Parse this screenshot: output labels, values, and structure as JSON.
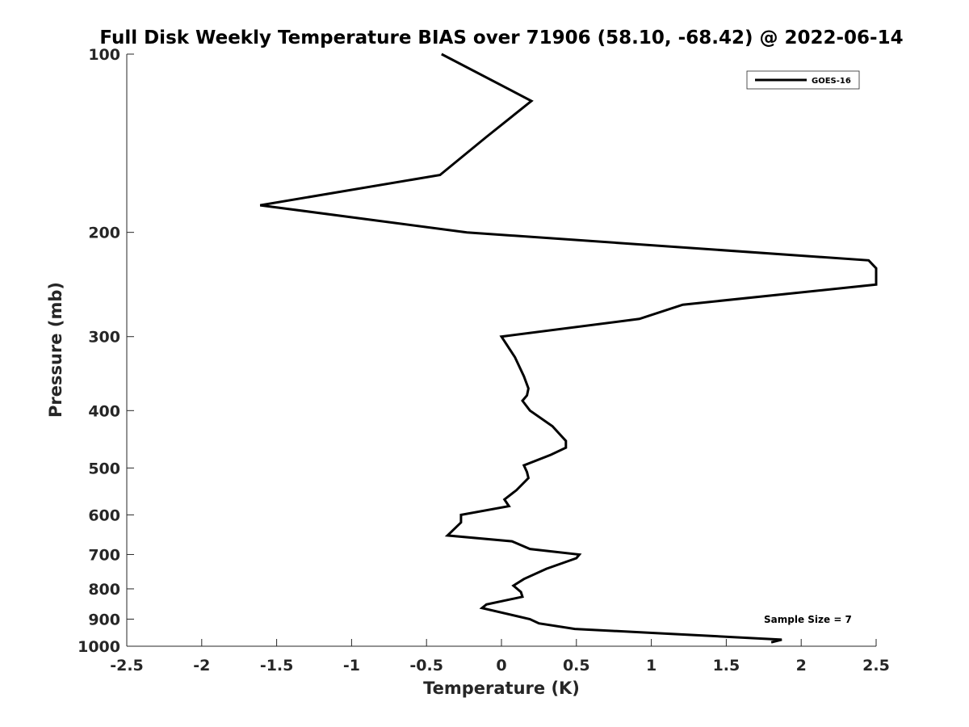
{
  "chart_data": {
    "type": "line",
    "title": "Full Disk Weekly Temperature BIAS over 71906 (58.10, -68.42) @ 2022-06-14",
    "xlabel": "Temperature (K)",
    "ylabel": "Pressure (mb)",
    "xlim": [
      -2.5,
      2.5
    ],
    "ylim": [
      100,
      1000
    ],
    "y_scale": "log",
    "y_reversed": true,
    "grid": false,
    "legend_position": "top-right",
    "x_ticks": [
      {
        "value": -2.5,
        "label": "-2.5"
      },
      {
        "value": -2,
        "label": "-2"
      },
      {
        "value": -1.5,
        "label": "-1.5"
      },
      {
        "value": -1,
        "label": "-1"
      },
      {
        "value": -0.5,
        "label": "-0.5"
      },
      {
        "value": 0,
        "label": "0"
      },
      {
        "value": 0.5,
        "label": "0.5"
      },
      {
        "value": 1,
        "label": "1"
      },
      {
        "value": 1.5,
        "label": "1.5"
      },
      {
        "value": 2,
        "label": "2"
      },
      {
        "value": 2.5,
        "label": "2.5"
      }
    ],
    "y_ticks": [
      {
        "value": 100,
        "label": "100"
      },
      {
        "value": 200,
        "label": "200"
      },
      {
        "value": 300,
        "label": "300"
      },
      {
        "value": 400,
        "label": "400"
      },
      {
        "value": 500,
        "label": "500"
      },
      {
        "value": 600,
        "label": "600"
      },
      {
        "value": 700,
        "label": "700"
      },
      {
        "value": 800,
        "label": "800"
      },
      {
        "value": 900,
        "label": "900"
      },
      {
        "value": 1000,
        "label": "1000"
      }
    ],
    "series": [
      {
        "name": "GOES-16",
        "color": "#000000",
        "points": [
          {
            "x": -0.4,
            "p": 100
          },
          {
            "x": 0.2,
            "p": 120
          },
          {
            "x": -0.1,
            "p": 138
          },
          {
            "x": -0.41,
            "p": 160
          },
          {
            "x": -1.61,
            "p": 180
          },
          {
            "x": -0.23,
            "p": 200
          },
          {
            "x": 2.45,
            "p": 223
          },
          {
            "x": 2.5,
            "p": 230
          },
          {
            "x": 2.5,
            "p": 245
          },
          {
            "x": 1.21,
            "p": 265
          },
          {
            "x": 0.92,
            "p": 280
          },
          {
            "x": 0.0,
            "p": 300
          },
          {
            "x": 0.09,
            "p": 325
          },
          {
            "x": 0.15,
            "p": 350
          },
          {
            "x": 0.18,
            "p": 367
          },
          {
            "x": 0.17,
            "p": 377
          },
          {
            "x": 0.14,
            "p": 385
          },
          {
            "x": 0.19,
            "p": 400
          },
          {
            "x": 0.34,
            "p": 425
          },
          {
            "x": 0.43,
            "p": 450
          },
          {
            "x": 0.43,
            "p": 462
          },
          {
            "x": 0.33,
            "p": 475
          },
          {
            "x": 0.15,
            "p": 495
          },
          {
            "x": 0.17,
            "p": 508
          },
          {
            "x": 0.18,
            "p": 520
          },
          {
            "x": 0.1,
            "p": 545
          },
          {
            "x": 0.02,
            "p": 565
          },
          {
            "x": 0.05,
            "p": 580
          },
          {
            "x": -0.27,
            "p": 600
          },
          {
            "x": -0.27,
            "p": 618
          },
          {
            "x": -0.36,
            "p": 650
          },
          {
            "x": 0.07,
            "p": 665
          },
          {
            "x": 0.19,
            "p": 685
          },
          {
            "x": 0.52,
            "p": 700
          },
          {
            "x": 0.5,
            "p": 710
          },
          {
            "x": 0.3,
            "p": 740
          },
          {
            "x": 0.15,
            "p": 770
          },
          {
            "x": 0.08,
            "p": 790
          },
          {
            "x": 0.13,
            "p": 810
          },
          {
            "x": 0.14,
            "p": 825
          },
          {
            "x": -0.1,
            "p": 850
          },
          {
            "x": -0.13,
            "p": 862
          },
          {
            "x": 0.19,
            "p": 900
          },
          {
            "x": 0.25,
            "p": 915
          },
          {
            "x": 0.49,
            "p": 935
          },
          {
            "x": 1.03,
            "p": 950
          },
          {
            "x": 1.87,
            "p": 975
          },
          {
            "x": 1.8,
            "p": 985
          }
        ]
      }
    ],
    "annotations": [
      {
        "text": "Sample Size = 7"
      }
    ]
  }
}
